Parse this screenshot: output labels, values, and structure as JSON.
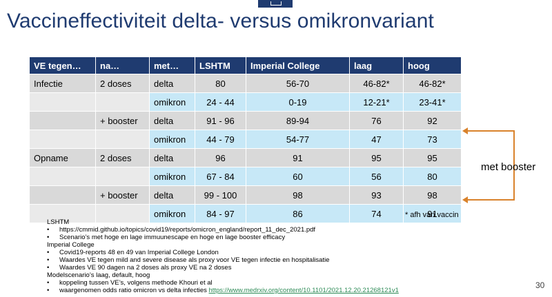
{
  "title": "Vaccineffectiviteit delta- versus omikronvariant",
  "table": {
    "headers": [
      "VE tegen…",
      "na…",
      "met…",
      "LSHTM",
      "Imperial College",
      "laag",
      "hoog"
    ],
    "rows": [
      [
        "Infectie",
        "2 doses",
        "delta",
        "80",
        "56-70",
        "46-82*",
        "46-82*"
      ],
      [
        "",
        "",
        "omikron",
        "24 - 44",
        "0-19",
        "12-21*",
        "23-41*"
      ],
      [
        "",
        "+ booster",
        "delta",
        "91 - 96",
        "89-94",
        "76",
        "92"
      ],
      [
        "",
        "",
        "omikron",
        "44 - 79",
        "54-77",
        "47",
        "73"
      ],
      [
        "Opname",
        "2 doses",
        "delta",
        "96",
        "91",
        "95",
        "95"
      ],
      [
        "",
        "",
        "omikron",
        "67 - 84",
        "60",
        "56",
        "80"
      ],
      [
        "",
        "+ booster",
        "delta",
        "99 - 100",
        "98",
        "93",
        "98"
      ],
      [
        "",
        "",
        "omikron",
        "84 - 97",
        "86",
        "74",
        "91"
      ]
    ]
  },
  "annotation": "met booster",
  "footnote": "* afh van vaccin",
  "notes": {
    "lshtm_head": "LSHTM",
    "lshtm_1": "https://cmmid.github.io/topics/covid19/reports/omicron_england/report_11_dec_2021.pdf",
    "lshtm_2": "Scenario’s met hoge en lage immuunescape en hoge en lage booster efficacy",
    "imperial_head": "Imperial College",
    "imperial_1": "Covid19-reports 48 en 49 van Imperial College London",
    "imperial_2": "Waardes VE tegen mild and severe disease als proxy voor VE tegen infectie en hospitalisatie",
    "imperial_3": "Waardes VE 90 dagen na 2 doses als proxy VE na 2 doses",
    "model_head": "Modelscenario’s laag, default, hoog",
    "model_1": "koppeling tussen VE’s, volgens methode Khouri et al",
    "model_2_text": "waargenomen odds ratio omicron vs delta infecties",
    "model_2_link": "https://www.medrxiv.org/content/10.1101/2021.12.20.21268121v1"
  },
  "page_number": "30",
  "colors": {
    "header_bg": "#1f3b70",
    "title_color": "#1f3b70",
    "row_gray": "#d9d9d9",
    "row_blue": "#c7e8f7",
    "arrow": "#d9822b",
    "link": "#2e8b57"
  }
}
